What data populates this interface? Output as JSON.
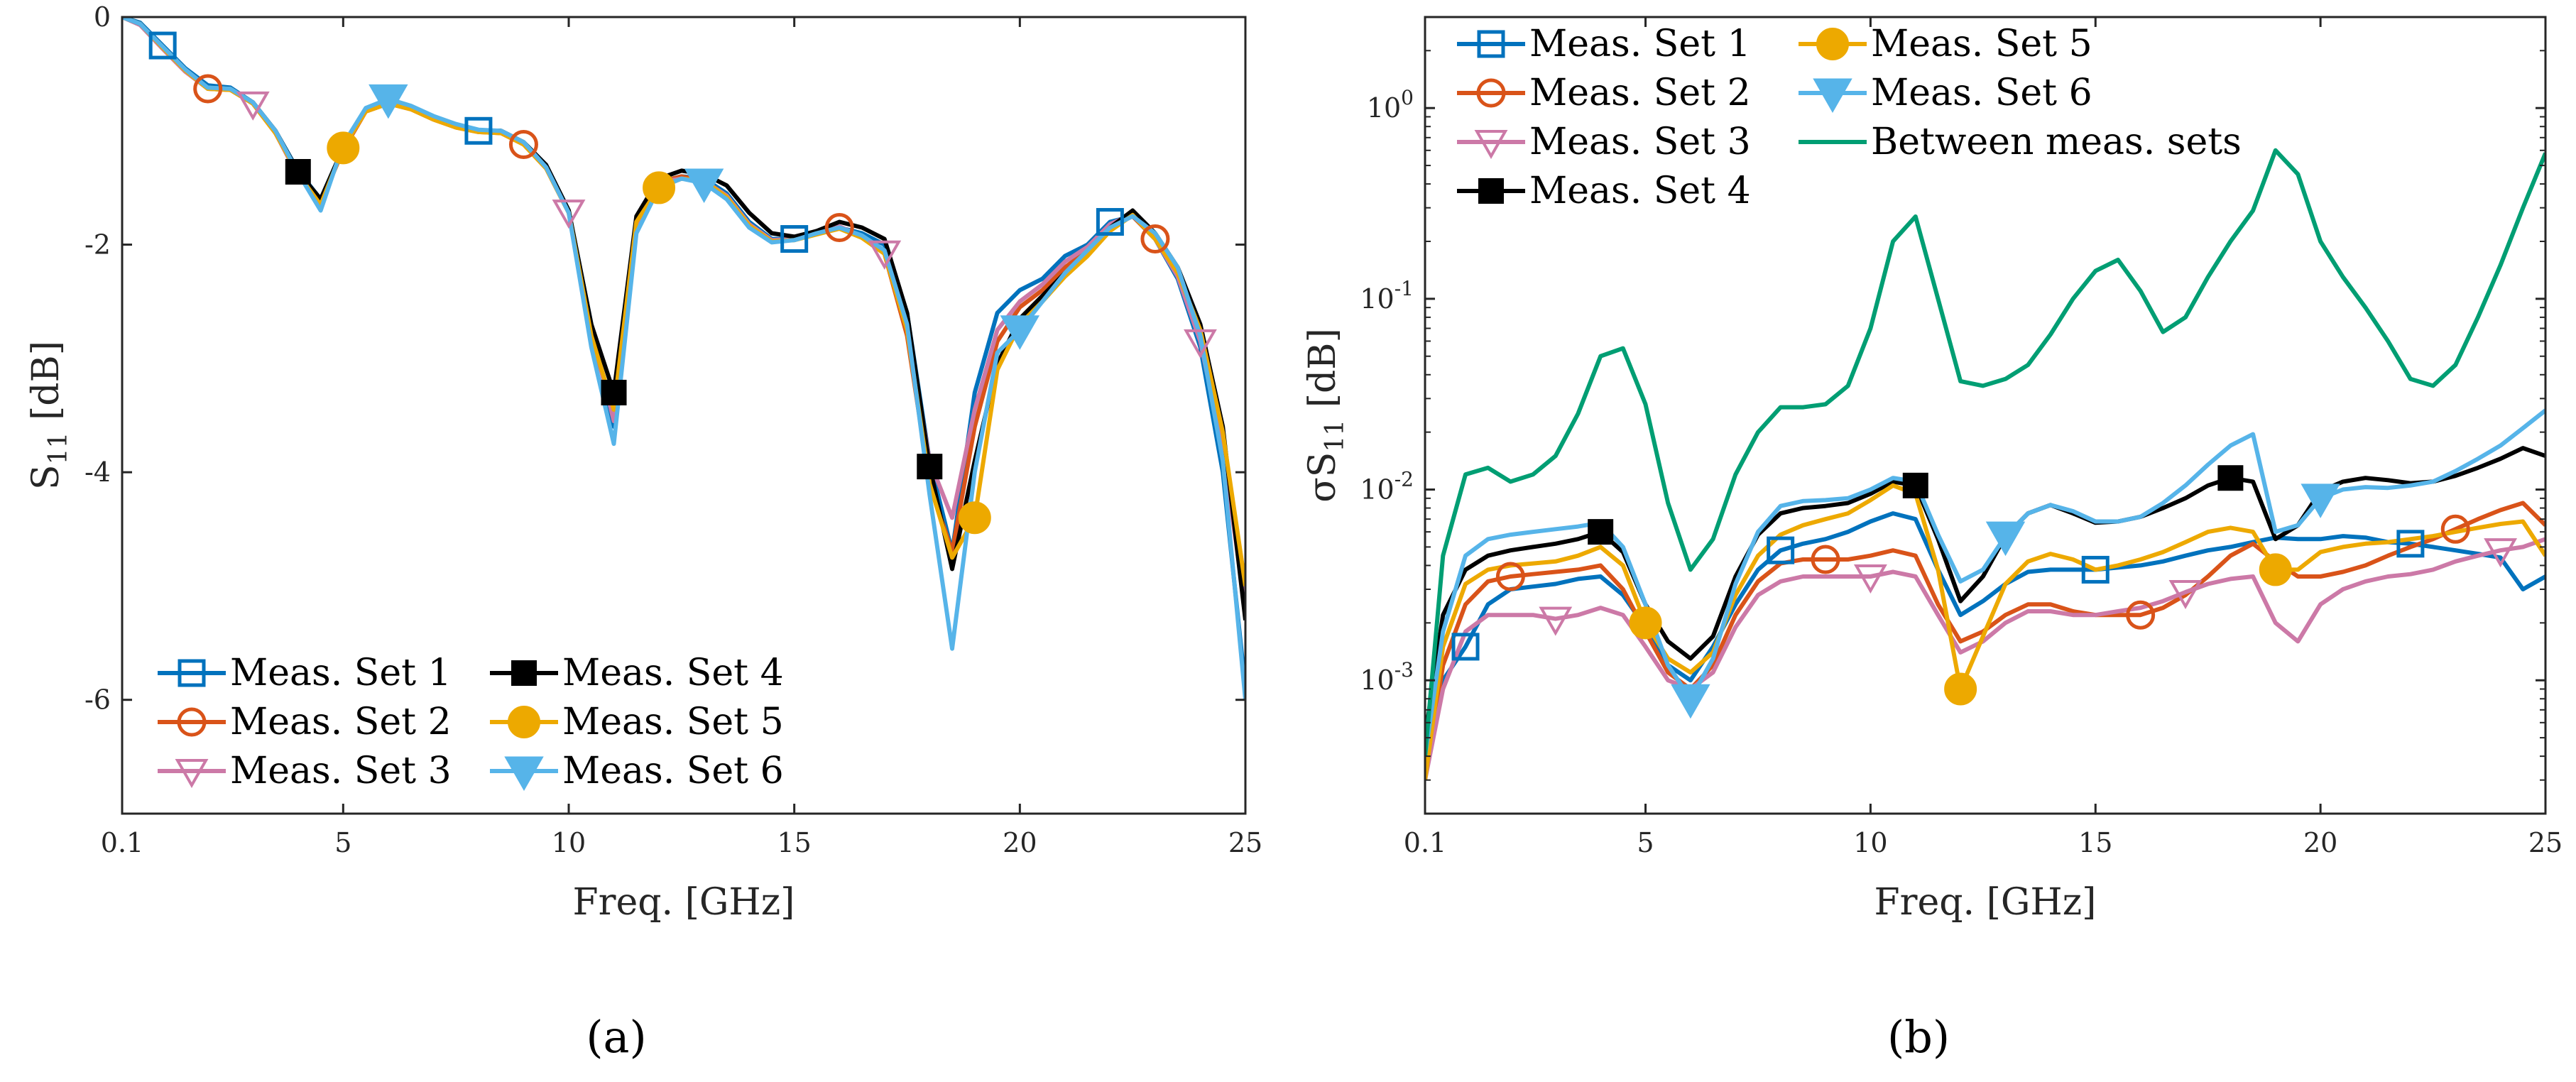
{
  "colors": {
    "set1": "#0072BD",
    "set2": "#D95319",
    "set3": "#CC79A7",
    "set4": "#000000",
    "set5": "#EDA900",
    "set6": "#56B4E9",
    "between": "#009E73",
    "axis": "#262626"
  },
  "captions": {
    "a": "(a)",
    "b": "(b)"
  },
  "chart_data": [
    {
      "id": "a",
      "type": "line",
      "xlabel": "Freq. [GHz]",
      "ylabel": "S",
      "ylabel_sub": "11",
      "ylabel_unit": " [dB]",
      "xlim": [
        0.1,
        25
      ],
      "ylim": [
        -7,
        0
      ],
      "xticks": [
        0.1,
        5,
        10,
        15,
        20,
        25
      ],
      "xtick_labels": [
        "0.1",
        "5",
        "10",
        "15",
        "20",
        "25"
      ],
      "yticks": [
        0,
        -2,
        -4,
        -6
      ],
      "ytick_labels": [
        "0",
        "-2",
        "-4",
        "-6"
      ],
      "legend_location": "bottom-left",
      "legend": [
        "Meas. Set 1",
        "Meas. Set 2",
        "Meas. Set 3",
        "Meas. Set 4",
        "Meas. Set 5",
        "Meas. Set 6"
      ],
      "x": [
        0.1,
        0.5,
        1,
        1.5,
        2,
        2.5,
        3,
        3.5,
        4,
        4.5,
        5,
        5.5,
        6,
        6.5,
        7,
        7.5,
        8,
        8.5,
        9,
        9.5,
        10,
        10.5,
        11,
        11.5,
        12,
        12.5,
        13,
        13.5,
        14,
        14.5,
        15,
        15.5,
        16,
        16.5,
        17,
        17.5,
        18,
        18.5,
        19,
        19.5,
        20,
        20.5,
        21,
        21.5,
        22,
        22.5,
        23,
        23.5,
        24,
        24.5,
        25
      ],
      "series": [
        {
          "name": "Meas. Set 1",
          "marker": "square-open",
          "marker_x": [
            1,
            8,
            15,
            22
          ],
          "values": [
            0,
            -0.05,
            -0.25,
            -0.45,
            -0.6,
            -0.62,
            -0.75,
            -1.0,
            -1.35,
            -1.6,
            -1.15,
            -0.82,
            -0.75,
            -0.8,
            -0.88,
            -0.95,
            -1.0,
            -1.0,
            -1.1,
            -1.3,
            -1.7,
            -2.7,
            -3.6,
            -1.8,
            -1.45,
            -1.4,
            -1.42,
            -1.55,
            -1.8,
            -1.95,
            -1.95,
            -1.9,
            -1.85,
            -1.9,
            -2.0,
            -2.6,
            -3.9,
            -4.7,
            -3.3,
            -2.6,
            -2.4,
            -2.3,
            -2.1,
            -2.0,
            -1.8,
            -1.75,
            -1.95,
            -2.3,
            -2.9,
            -4.0,
            -5.9
          ]
        },
        {
          "name": "Meas. Set 2",
          "marker": "circle-open",
          "marker_x": [
            2,
            9,
            16,
            23
          ],
          "values": [
            0,
            -0.06,
            -0.27,
            -0.47,
            -0.63,
            -0.64,
            -0.76,
            -1.02,
            -1.38,
            -1.63,
            -1.17,
            -0.83,
            -0.76,
            -0.81,
            -0.9,
            -0.97,
            -1.01,
            -1.02,
            -1.12,
            -1.33,
            -1.72,
            -2.8,
            -3.5,
            -1.85,
            -1.45,
            -1.4,
            -1.44,
            -1.57,
            -1.82,
            -1.97,
            -1.95,
            -1.9,
            -1.85,
            -1.93,
            -2.08,
            -2.8,
            -4.1,
            -4.7,
            -3.6,
            -2.85,
            -2.55,
            -2.4,
            -2.2,
            -2.05,
            -1.85,
            -1.75,
            -1.95,
            -2.25,
            -2.8,
            -3.7,
            -5.0
          ]
        },
        {
          "name": "Meas. Set 3",
          "marker": "triangle-down-open",
          "marker_x": [
            3,
            10,
            17,
            24
          ],
          "values": [
            0,
            -0.07,
            -0.28,
            -0.48,
            -0.63,
            -0.64,
            -0.76,
            -1.02,
            -1.4,
            -1.62,
            -1.16,
            -0.82,
            -0.75,
            -0.8,
            -0.89,
            -0.96,
            -1.0,
            -1.01,
            -1.11,
            -1.32,
            -1.71,
            -2.75,
            -3.55,
            -1.82,
            -1.45,
            -1.42,
            -1.44,
            -1.57,
            -1.82,
            -1.96,
            -1.95,
            -1.88,
            -1.84,
            -1.93,
            -2.07,
            -2.7,
            -3.9,
            -4.4,
            -3.45,
            -2.75,
            -2.5,
            -2.35,
            -2.15,
            -2.02,
            -1.82,
            -1.73,
            -1.95,
            -2.28,
            -2.85,
            -3.8,
            -5.2
          ]
        },
        {
          "name": "Meas. Set 4",
          "marker": "square-filled",
          "marker_x": [
            4,
            11,
            18
          ],
          "values": [
            0,
            -0.06,
            -0.26,
            -0.46,
            -0.62,
            -0.63,
            -0.75,
            -1.0,
            -1.36,
            -1.6,
            -1.15,
            -0.82,
            -0.75,
            -0.8,
            -0.88,
            -0.95,
            -1.0,
            -1.0,
            -1.1,
            -1.3,
            -1.7,
            -2.7,
            -3.3,
            -1.75,
            -1.42,
            -1.35,
            -1.38,
            -1.48,
            -1.72,
            -1.9,
            -1.93,
            -1.88,
            -1.8,
            -1.85,
            -1.95,
            -2.6,
            -3.95,
            -4.85,
            -3.9,
            -3.05,
            -2.65,
            -2.45,
            -2.25,
            -2.07,
            -1.85,
            -1.7,
            -1.9,
            -2.2,
            -2.7,
            -3.6,
            -5.3
          ]
        },
        {
          "name": "Meas. Set 5",
          "marker": "circle-filled",
          "marker_x": [
            5,
            12,
            19
          ],
          "values": [
            0,
            -0.06,
            -0.27,
            -0.47,
            -0.63,
            -0.64,
            -0.76,
            -1.02,
            -1.38,
            -1.65,
            -1.15,
            -0.83,
            -0.76,
            -0.81,
            -0.9,
            -0.97,
            -1.01,
            -1.02,
            -1.12,
            -1.33,
            -1.72,
            -2.8,
            -3.45,
            -1.8,
            -1.5,
            -1.42,
            -1.44,
            -1.58,
            -1.83,
            -1.97,
            -1.96,
            -1.91,
            -1.86,
            -1.94,
            -2.08,
            -2.75,
            -4.1,
            -4.75,
            -4.4,
            -3.1,
            -2.7,
            -2.5,
            -2.28,
            -2.1,
            -1.88,
            -1.74,
            -1.95,
            -2.25,
            -2.75,
            -3.65,
            -5.0
          ]
        },
        {
          "name": "Meas. Set 6",
          "marker": "triangle-down-filled",
          "marker_x": [
            6,
            13,
            20
          ],
          "values": [
            0,
            -0.06,
            -0.26,
            -0.46,
            -0.62,
            -0.63,
            -0.75,
            -1.0,
            -1.37,
            -1.7,
            -1.12,
            -0.8,
            -0.72,
            -0.78,
            -0.87,
            -0.94,
            -0.99,
            -1.0,
            -1.1,
            -1.32,
            -1.72,
            -2.9,
            -3.75,
            -1.9,
            -1.5,
            -1.42,
            -1.46,
            -1.6,
            -1.85,
            -1.98,
            -1.96,
            -1.9,
            -1.85,
            -1.92,
            -2.05,
            -2.7,
            -4.2,
            -5.55,
            -4.0,
            -2.95,
            -2.75,
            -2.5,
            -2.25,
            -2.05,
            -1.85,
            -1.75,
            -1.9,
            -2.2,
            -2.8,
            -3.9,
            -6.0
          ]
        }
      ]
    },
    {
      "id": "b",
      "type": "line",
      "yscale": "log",
      "xlabel": "Freq. [GHz]",
      "ylabel": "σS",
      "ylabel_sub": "11",
      "ylabel_unit": " [dB]",
      "xlim": [
        0.1,
        25
      ],
      "ylim": [
        0.0002,
        3
      ],
      "xticks": [
        0.1,
        5,
        10,
        15,
        20,
        25
      ],
      "xtick_labels": [
        "0.1",
        "5",
        "10",
        "15",
        "20",
        "25"
      ],
      "yticks": [
        0.001,
        0.01,
        0.1,
        1
      ],
      "ytick_base": [
        "10",
        "10",
        "10",
        "10"
      ],
      "ytick_exp": [
        "-3",
        "-2",
        "-1",
        "0"
      ],
      "legend_location": "top-left",
      "legend": [
        "Meas. Set 1",
        "Meas. Set 2",
        "Meas. Set 3",
        "Meas. Set 4",
        "Meas. Set 5",
        "Meas. Set 6",
        "Between meas. sets"
      ],
      "x": [
        0.1,
        0.5,
        1,
        1.5,
        2,
        2.5,
        3,
        3.5,
        4,
        4.5,
        5,
        5.5,
        6,
        6.5,
        7,
        7.5,
        8,
        8.5,
        9,
        9.5,
        10,
        10.5,
        11,
        11.5,
        12,
        12.5,
        13,
        13.5,
        14,
        14.5,
        15,
        15.5,
        16,
        16.5,
        17,
        17.5,
        18,
        18.5,
        19,
        19.5,
        20,
        20.5,
        21,
        21.5,
        22,
        22.5,
        23,
        23.5,
        24,
        24.5,
        25
      ],
      "series": [
        {
          "name": "Meas. Set 1",
          "marker": "square-open",
          "marker_x": [
            1,
            8,
            15,
            22
          ],
          "values": [
            0.0004,
            0.001,
            0.0015,
            0.0025,
            0.003,
            0.0031,
            0.0032,
            0.0034,
            0.0035,
            0.0028,
            0.0019,
            0.0012,
            0.001,
            0.0015,
            0.0025,
            0.0038,
            0.0048,
            0.0052,
            0.0055,
            0.006,
            0.0068,
            0.0075,
            0.007,
            0.0038,
            0.0022,
            0.0026,
            0.0032,
            0.0037,
            0.0038,
            0.0038,
            0.0038,
            0.0039,
            0.004,
            0.0042,
            0.0045,
            0.0048,
            0.005,
            0.0053,
            0.0056,
            0.0055,
            0.0055,
            0.0057,
            0.0056,
            0.0053,
            0.0052,
            0.005,
            0.0048,
            0.0046,
            0.0044,
            0.003,
            0.0035
          ]
        },
        {
          "name": "Meas. Set 2",
          "marker": "circle-open",
          "marker_x": [
            2,
            9,
            16,
            23
          ],
          "values": [
            0.0003,
            0.0012,
            0.0025,
            0.0033,
            0.0035,
            0.0036,
            0.0037,
            0.0038,
            0.004,
            0.003,
            0.0018,
            0.0011,
            0.0009,
            0.0012,
            0.0022,
            0.0033,
            0.0041,
            0.0043,
            0.0043,
            0.0043,
            0.0045,
            0.0048,
            0.0045,
            0.0025,
            0.0016,
            0.0018,
            0.0022,
            0.0025,
            0.0025,
            0.0023,
            0.0022,
            0.0022,
            0.0022,
            0.0024,
            0.0028,
            0.0035,
            0.0045,
            0.0052,
            0.0042,
            0.0035,
            0.0035,
            0.0037,
            0.004,
            0.0045,
            0.005,
            0.0055,
            0.0062,
            0.007,
            0.0078,
            0.0085,
            0.0065
          ]
        },
        {
          "name": "Meas. Set 3",
          "marker": "triangle-down-open",
          "marker_x": [
            3,
            10,
            17,
            24
          ],
          "values": [
            0.0003,
            0.0009,
            0.0018,
            0.0022,
            0.0022,
            0.0022,
            0.0021,
            0.0022,
            0.0024,
            0.0022,
            0.0015,
            0.001,
            0.0009,
            0.0011,
            0.0019,
            0.0028,
            0.0033,
            0.0035,
            0.0035,
            0.0035,
            0.0035,
            0.0037,
            0.0035,
            0.0022,
            0.0014,
            0.0016,
            0.002,
            0.0023,
            0.0023,
            0.0022,
            0.0022,
            0.0023,
            0.0024,
            0.0026,
            0.0029,
            0.0032,
            0.0034,
            0.0035,
            0.002,
            0.0016,
            0.0025,
            0.003,
            0.0033,
            0.0035,
            0.0036,
            0.0038,
            0.0042,
            0.0045,
            0.0048,
            0.005,
            0.0055
          ]
        },
        {
          "name": "Meas. Set 4",
          "marker": "square-filled",
          "marker_x": [
            4,
            11,
            18
          ],
          "values": [
            0.0005,
            0.0022,
            0.0038,
            0.0045,
            0.0048,
            0.005,
            0.0052,
            0.0055,
            0.006,
            0.0047,
            0.0025,
            0.0016,
            0.0013,
            0.0017,
            0.0035,
            0.0058,
            0.0075,
            0.008,
            0.0082,
            0.0085,
            0.0095,
            0.011,
            0.0105,
            0.0055,
            0.0026,
            0.0035,
            0.0057,
            0.0075,
            0.0083,
            0.0075,
            0.0067,
            0.0068,
            0.0072,
            0.008,
            0.009,
            0.0105,
            0.0115,
            0.011,
            0.0055,
            0.0065,
            0.0098,
            0.011,
            0.0115,
            0.0112,
            0.0108,
            0.011,
            0.0118,
            0.013,
            0.0145,
            0.0165,
            0.015
          ]
        },
        {
          "name": "Meas. Set 5",
          "marker": "circle-filled",
          "marker_x": [
            5,
            12,
            19
          ],
          "values": [
            0.0003,
            0.0015,
            0.0032,
            0.0038,
            0.004,
            0.0041,
            0.0042,
            0.0045,
            0.005,
            0.004,
            0.002,
            0.0013,
            0.0011,
            0.0014,
            0.0028,
            0.0045,
            0.0058,
            0.0065,
            0.007,
            0.0075,
            0.0088,
            0.0105,
            0.0095,
            0.0038,
            0.0009,
            0.0017,
            0.0032,
            0.0042,
            0.0046,
            0.0043,
            0.0038,
            0.004,
            0.0043,
            0.0047,
            0.0053,
            0.006,
            0.0063,
            0.006,
            0.0038,
            0.0038,
            0.0047,
            0.005,
            0.0052,
            0.0053,
            0.0055,
            0.0057,
            0.006,
            0.0063,
            0.0066,
            0.0068,
            0.0045
          ]
        },
        {
          "name": "Meas. Set 6",
          "marker": "triangle-down-filled",
          "marker_x": [
            6,
            13,
            20
          ],
          "values": [
            0.0004,
            0.0018,
            0.0045,
            0.0055,
            0.0058,
            0.006,
            0.0062,
            0.0064,
            0.0067,
            0.005,
            0.0025,
            0.0012,
            0.0008,
            0.0013,
            0.0032,
            0.006,
            0.0082,
            0.0087,
            0.0088,
            0.009,
            0.01,
            0.0115,
            0.011,
            0.0058,
            0.0033,
            0.0038,
            0.0057,
            0.0075,
            0.0083,
            0.0077,
            0.0068,
            0.0068,
            0.0072,
            0.0085,
            0.0105,
            0.0135,
            0.017,
            0.0195,
            0.006,
            0.0065,
            0.009,
            0.01,
            0.0103,
            0.0102,
            0.0105,
            0.011,
            0.0125,
            0.0145,
            0.017,
            0.021,
            0.026
          ]
        },
        {
          "name": "Between meas. sets",
          "marker": "none",
          "values": [
            0.0004,
            0.0045,
            0.012,
            0.013,
            0.011,
            0.012,
            0.015,
            0.025,
            0.05,
            0.055,
            0.028,
            0.0085,
            0.0038,
            0.0055,
            0.012,
            0.02,
            0.027,
            0.027,
            0.028,
            0.035,
            0.07,
            0.2,
            0.27,
            0.1,
            0.037,
            0.035,
            0.038,
            0.045,
            0.065,
            0.1,
            0.14,
            0.16,
            0.11,
            0.067,
            0.08,
            0.13,
            0.2,
            0.29,
            0.6,
            0.45,
            0.2,
            0.13,
            0.09,
            0.06,
            0.038,
            0.035,
            0.045,
            0.08,
            0.15,
            0.3,
            0.58
          ]
        }
      ]
    }
  ]
}
